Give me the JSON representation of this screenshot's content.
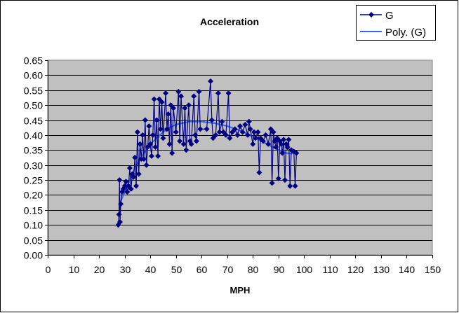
{
  "chart_data": {
    "type": "line",
    "title": "Acceleration",
    "xlabel": "MPH",
    "ylabel": "",
    "xlim": [
      0,
      150
    ],
    "ylim": [
      0,
      0.65
    ],
    "xticks": [
      "0",
      "10",
      "20",
      "30",
      "40",
      "50",
      "60",
      "70",
      "80",
      "90",
      "100",
      "110",
      "120",
      "130",
      "140",
      "150"
    ],
    "yticks": [
      "0.00",
      "0.05",
      "0.10",
      "0.15",
      "0.20",
      "0.25",
      "0.30",
      "0.35",
      "0.40",
      "0.45",
      "0.50",
      "0.55",
      "0.60",
      "0.65"
    ],
    "grid": "horizontal major",
    "legend_position": "top-right",
    "legend": [
      "G",
      "Poly. (G)"
    ],
    "colors": {
      "series": "#000080",
      "trend": "#3366ff",
      "plot_bg": "#c0c0c0"
    },
    "series": [
      {
        "name": "G",
        "points": [
          [
            27.5,
            0.1
          ],
          [
            27.8,
            0.135
          ],
          [
            28,
            0.25
          ],
          [
            28.2,
            0.11
          ],
          [
            28.5,
            0.17
          ],
          [
            29,
            0.21
          ],
          [
            29.5,
            0.22
          ],
          [
            30,
            0.23
          ],
          [
            30.5,
            0.245
          ],
          [
            31,
            0.21
          ],
          [
            31.5,
            0.23
          ],
          [
            32,
            0.29
          ],
          [
            32.5,
            0.22
          ],
          [
            33,
            0.27
          ],
          [
            33.5,
            0.26
          ],
          [
            34,
            0.325
          ],
          [
            34.5,
            0.23
          ],
          [
            35,
            0.41
          ],
          [
            35.5,
            0.27
          ],
          [
            36,
            0.37
          ],
          [
            36.5,
            0.32
          ],
          [
            37,
            0.4
          ],
          [
            37.5,
            0.32
          ],
          [
            38,
            0.45
          ],
          [
            38.5,
            0.3
          ],
          [
            39,
            0.36
          ],
          [
            39.5,
            0.43
          ],
          [
            40,
            0.37
          ],
          [
            40.5,
            0.33
          ],
          [
            41,
            0.4
          ],
          [
            41.5,
            0.52
          ],
          [
            42,
            0.36
          ],
          [
            42.5,
            0.45
          ],
          [
            43,
            0.33
          ],
          [
            43.5,
            0.52
          ],
          [
            44,
            0.42
          ],
          [
            44.5,
            0.51
          ],
          [
            45,
            0.39
          ],
          [
            46,
            0.54
          ],
          [
            46.5,
            0.42
          ],
          [
            47,
            0.47
          ],
          [
            47.5,
            0.37
          ],
          [
            48,
            0.5
          ],
          [
            48.5,
            0.34
          ],
          [
            49,
            0.49
          ],
          [
            50,
            0.41
          ],
          [
            51,
            0.545
          ],
          [
            51.5,
            0.38
          ],
          [
            52,
            0.53
          ],
          [
            53,
            0.37
          ],
          [
            53.5,
            0.49
          ],
          [
            54,
            0.35
          ],
          [
            55,
            0.5
          ],
          [
            55.5,
            0.38
          ],
          [
            56,
            0.37
          ],
          [
            57,
            0.53
          ],
          [
            57.5,
            0.4
          ],
          [
            58,
            0.38
          ],
          [
            59,
            0.545
          ],
          [
            59.5,
            0.42
          ],
          [
            62,
            0.42
          ],
          [
            63.5,
            0.58
          ],
          [
            64,
            0.45
          ],
          [
            64.5,
            0.39
          ],
          [
            65.5,
            0.4
          ],
          [
            66.5,
            0.54
          ],
          [
            67,
            0.41
          ],
          [
            68,
            0.445
          ],
          [
            68.5,
            0.41
          ],
          [
            69.5,
            0.4
          ],
          [
            70.5,
            0.54
          ],
          [
            71,
            0.39
          ],
          [
            72,
            0.41
          ],
          [
            73,
            0.42
          ],
          [
            74,
            0.4
          ],
          [
            75,
            0.43
          ],
          [
            76,
            0.41
          ],
          [
            77,
            0.435
          ],
          [
            78,
            0.4
          ],
          [
            78.5,
            0.445
          ],
          [
            79,
            0.42
          ],
          [
            80,
            0.37
          ],
          [
            80.5,
            0.41
          ],
          [
            81,
            0.39
          ],
          [
            82,
            0.41
          ],
          [
            82.5,
            0.275
          ],
          [
            83,
            0.39
          ],
          [
            84,
            0.38
          ],
          [
            85,
            0.4
          ],
          [
            86,
            0.37
          ],
          [
            87,
            0.42
          ],
          [
            87.5,
            0.24
          ],
          [
            88,
            0.41
          ],
          [
            88.5,
            0.38
          ],
          [
            89,
            0.36
          ],
          [
            89.5,
            0.39
          ],
          [
            90,
            0.255
          ],
          [
            90.5,
            0.38
          ],
          [
            91,
            0.37
          ],
          [
            91.5,
            0.34
          ],
          [
            92,
            0.385
          ],
          [
            92.5,
            0.25
          ],
          [
            93,
            0.37
          ],
          [
            93.5,
            0.36
          ],
          [
            94,
            0.385
          ],
          [
            94.5,
            0.23
          ],
          [
            95,
            0.35
          ],
          [
            96,
            0.345
          ],
          [
            96.5,
            0.23
          ],
          [
            97,
            0.34
          ]
        ]
      },
      {
        "name": "Poly. (G)",
        "points": [
          [
            28,
            0.17
          ],
          [
            30,
            0.21
          ],
          [
            32,
            0.25
          ],
          [
            34,
            0.29
          ],
          [
            36,
            0.32
          ],
          [
            38,
            0.345
          ],
          [
            40,
            0.37
          ],
          [
            42.5,
            0.39
          ],
          [
            45,
            0.41
          ],
          [
            47.5,
            0.425
          ],
          [
            50,
            0.435
          ],
          [
            55,
            0.445
          ],
          [
            60,
            0.445
          ],
          [
            65,
            0.44
          ],
          [
            70,
            0.43
          ],
          [
            75,
            0.415
          ],
          [
            80,
            0.395
          ],
          [
            85,
            0.372
          ],
          [
            90,
            0.35
          ],
          [
            93,
            0.34
          ],
          [
            95,
            0.338
          ],
          [
            97,
            0.345
          ]
        ]
      }
    ]
  }
}
